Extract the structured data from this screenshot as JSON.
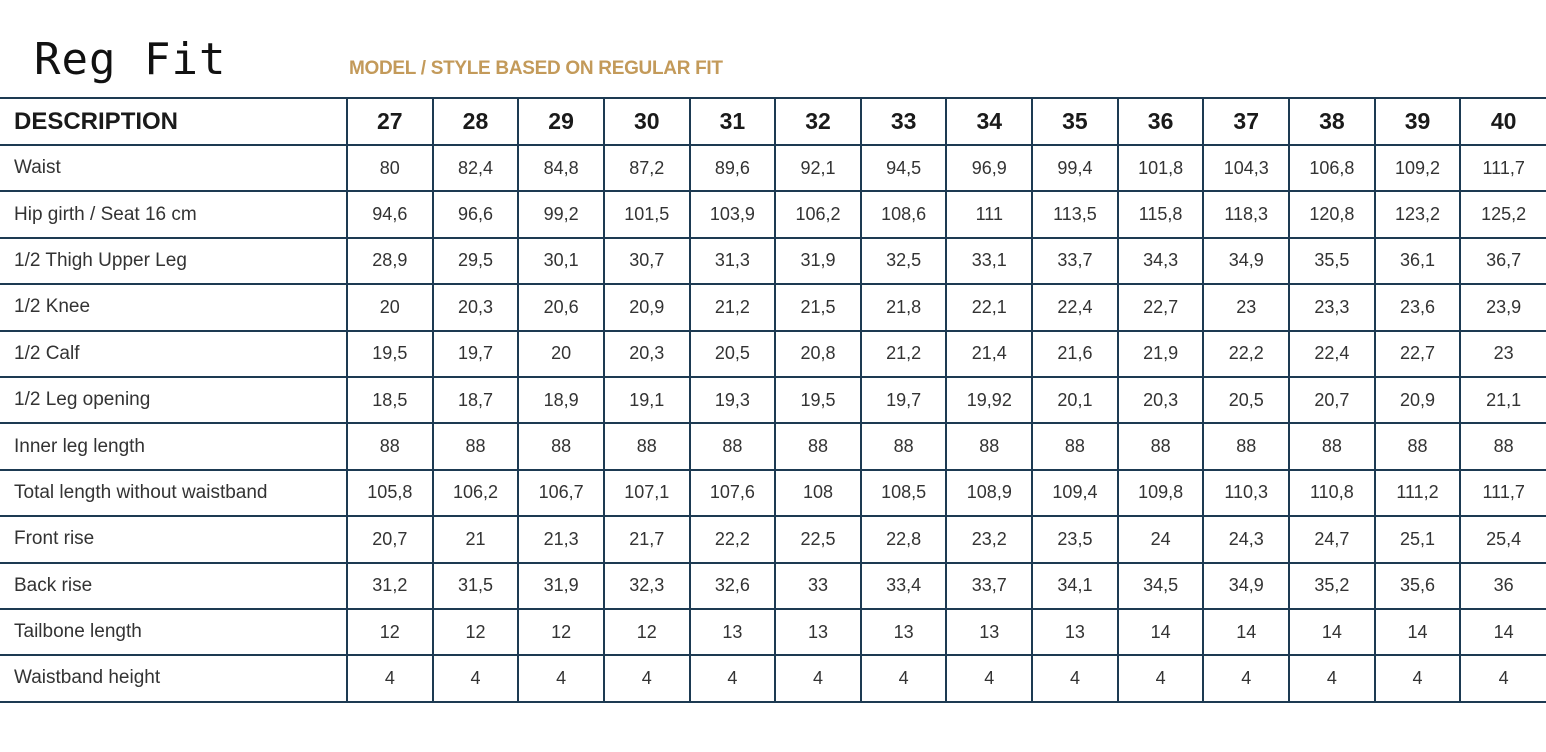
{
  "title": "Reg Fit",
  "subtitle": "MODEL / STYLE BASED ON REGULAR FIT",
  "table": {
    "header": "DESCRIPTION",
    "sizes": [
      "27",
      "28",
      "29",
      "30",
      "31",
      "32",
      "33",
      "34",
      "35",
      "36",
      "37",
      "38",
      "39",
      "40"
    ],
    "rows": [
      {
        "label": "Waist",
        "values": [
          "80",
          "82,4",
          "84,8",
          "87,2",
          "89,6",
          "92,1",
          "94,5",
          "96,9",
          "99,4",
          "101,8",
          "104,3",
          "106,8",
          "109,2",
          "111,7"
        ]
      },
      {
        "label": "Hip girth / Seat 16 cm",
        "values": [
          "94,6",
          "96,6",
          "99,2",
          "101,5",
          "103,9",
          "106,2",
          "108,6",
          "111",
          "113,5",
          "115,8",
          "118,3",
          "120,8",
          "123,2",
          "125,2"
        ]
      },
      {
        "label": "1/2 Thigh Upper Leg",
        "values": [
          "28,9",
          "29,5",
          "30,1",
          "30,7",
          "31,3",
          "31,9",
          "32,5",
          "33,1",
          "33,7",
          "34,3",
          "34,9",
          "35,5",
          "36,1",
          "36,7"
        ]
      },
      {
        "label": "1/2 Knee",
        "values": [
          "20",
          "20,3",
          "20,6",
          "20,9",
          "21,2",
          "21,5",
          "21,8",
          "22,1",
          "22,4",
          "22,7",
          "23",
          "23,3",
          "23,6",
          "23,9"
        ]
      },
      {
        "label": "1/2 Calf",
        "values": [
          "19,5",
          "19,7",
          "20",
          "20,3",
          "20,5",
          "20,8",
          "21,2",
          "21,4",
          "21,6",
          "21,9",
          "22,2",
          "22,4",
          "22,7",
          "23"
        ]
      },
      {
        "label": "1/2 Leg opening",
        "values": [
          "18,5",
          "18,7",
          "18,9",
          "19,1",
          "19,3",
          "19,5",
          "19,7",
          "19,92",
          "20,1",
          "20,3",
          "20,5",
          "20,7",
          "20,9",
          "21,1"
        ]
      },
      {
        "label": "Inner leg length",
        "values": [
          "88",
          "88",
          "88",
          "88",
          "88",
          "88",
          "88",
          "88",
          "88",
          "88",
          "88",
          "88",
          "88",
          "88"
        ]
      },
      {
        "label": "Total length without waistband",
        "values": [
          "105,8",
          "106,2",
          "106,7",
          "107,1",
          "107,6",
          "108",
          "108,5",
          "108,9",
          "109,4",
          "109,8",
          "110,3",
          "110,8",
          "111,2",
          "111,7"
        ]
      },
      {
        "label": "Front rise",
        "values": [
          "20,7",
          "21",
          "21,3",
          "21,7",
          "22,2",
          "22,5",
          "22,8",
          "23,2",
          "23,5",
          "24",
          "24,3",
          "24,7",
          "25,1",
          "25,4"
        ]
      },
      {
        "label": "Back rise",
        "values": [
          "31,2",
          "31,5",
          "31,9",
          "32,3",
          "32,6",
          "33",
          "33,4",
          "33,7",
          "34,1",
          "34,5",
          "34,9",
          "35,2",
          "35,6",
          "36"
        ]
      },
      {
        "label": "Tailbone length",
        "values": [
          "12",
          "12",
          "12",
          "12",
          "13",
          "13",
          "13",
          "13",
          "13",
          "14",
          "14",
          "14",
          "14",
          "14"
        ]
      },
      {
        "label": "Waistband height",
        "values": [
          "4",
          "4",
          "4",
          "4",
          "4",
          "4",
          "4",
          "4",
          "4",
          "4",
          "4",
          "4",
          "4",
          "4"
        ]
      }
    ]
  }
}
